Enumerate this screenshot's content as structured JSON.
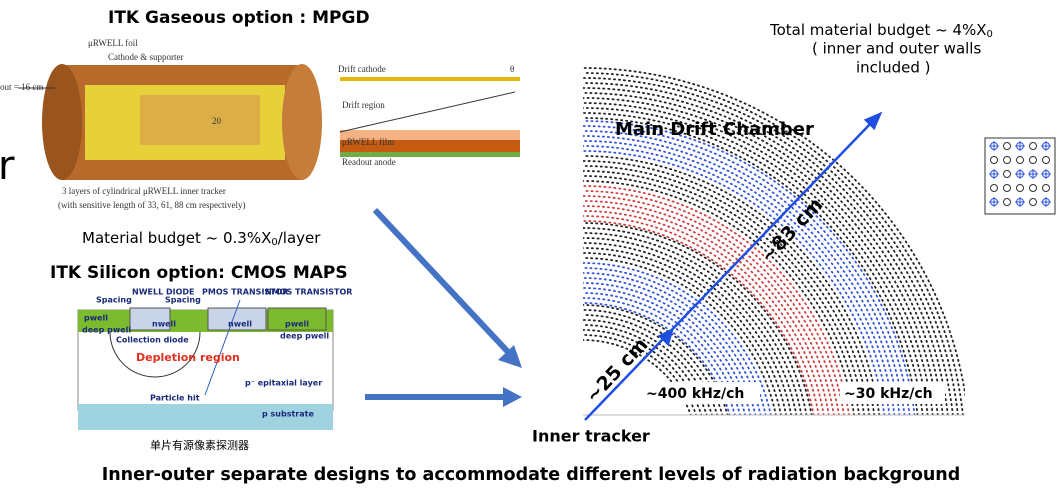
{
  "mpgd": {
    "title": "ITK Gaseous option : MPGD",
    "cut_letter": "r",
    "radius_label": "out = 16 cm",
    "foil": "μRWELL foil",
    "cathode": "Cathode & supporter",
    "layer_num": "20",
    "caption1": "3 layers of cylindrical μRWELL inner tracker",
    "caption2": "(with sensitive length of 33, 61, 88 cm respectively)",
    "drift_cathode": "Drift cathode",
    "theta": "θ",
    "drift_region": "Drift region",
    "film": "μRWELL film",
    "anode": "Readout anode",
    "budget": {
      "text": "Material budget ~ 0.3%X",
      "sub": "0",
      "tail": "/layer"
    }
  },
  "cmos": {
    "title": "ITK Silicon option: CMOS MAPS",
    "nwell_diode": "NWELL DIODE",
    "spacing": "Spacing",
    "pmos": "PMOS TRANSISTOR",
    "nmos": "NMOS TRANSISTOR",
    "pwell": "pwell",
    "nwell": "nwell",
    "deep_pwell": "deep pwell",
    "collection": "Collection diode",
    "depletion": "Depletion region",
    "epitaxial": "p⁻ epitaxial layer",
    "hit": "Particle hit",
    "substrate": "p substrate",
    "caption": "单片有源像素探测器"
  },
  "chamber": {
    "budget": {
      "text": "Total material budget ~ 4%X",
      "sub": "0",
      "line2": "( inner and outer walls",
      "line3": "included )"
    },
    "title": "Main Drift Chamber",
    "outer_radius": "~83 cm",
    "inner_radius": "~25 cm",
    "inner_rate": "~400 kHz/ch",
    "outer_rate": "~30 kHz/ch",
    "inner_tracker": "Inner tracker"
  },
  "footer": "Inner-outer separate designs to accommodate different levels of radiation background"
}
